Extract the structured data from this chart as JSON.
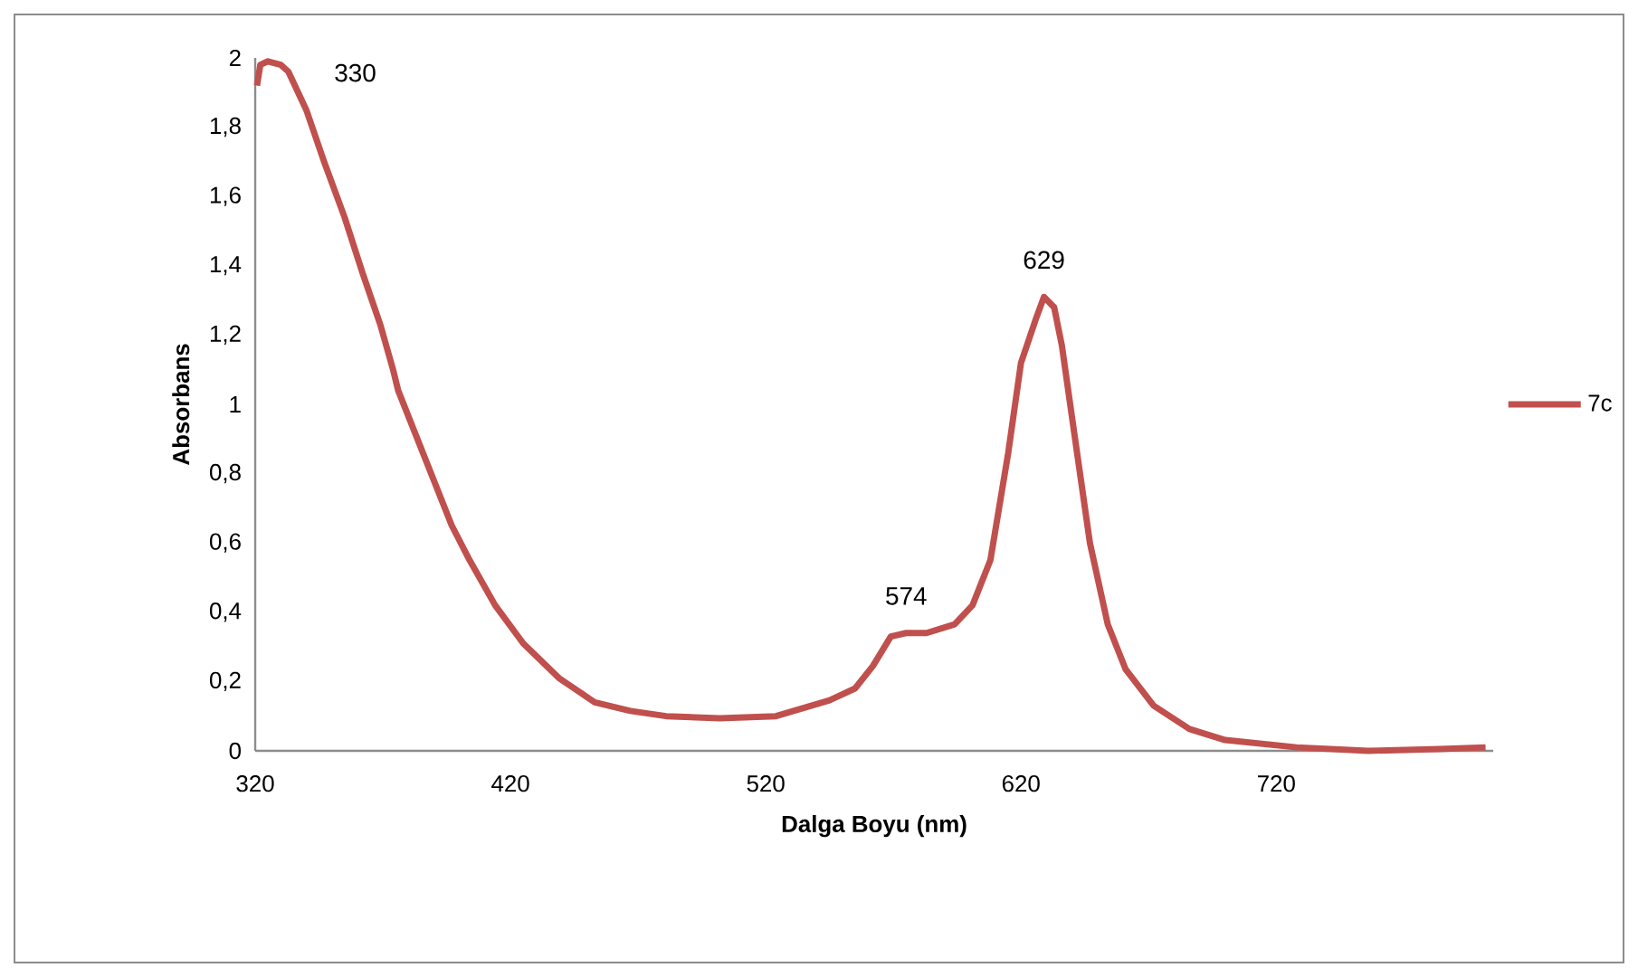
{
  "chart_data": {
    "type": "line",
    "xlabel": "Dalga Boyu (nm)",
    "ylabel": "Absorbans",
    "legend": "right",
    "grid": false,
    "marker": "none",
    "line_style": "solid",
    "xlim": [
      320,
      805
    ],
    "xticks": [
      320,
      420,
      520,
      620,
      720
    ],
    "ylim": [
      0,
      2
    ],
    "yticks": [
      0,
      {
        "value": 0.2,
        "label": "0,2"
      },
      {
        "value": 0.4,
        "label": "0,4"
      },
      {
        "value": 0.6,
        "label": "0,6"
      },
      {
        "value": 0.8,
        "label": "0,8"
      },
      1,
      {
        "value": 1.2,
        "label": "1,2"
      },
      {
        "value": 1.4,
        "label": "1,4"
      },
      {
        "value": 1.6,
        "label": "1,6"
      },
      {
        "value": 1.8,
        "label": "1,8"
      },
      2
    ],
    "annotations": [
      {
        "text": "330",
        "x": 330,
        "y": 1.98
      },
      {
        "text": "574",
        "x": 575,
        "y": 0.34
      },
      {
        "text": "629",
        "x": 629,
        "y": 1.31
      }
    ],
    "series": [
      {
        "name": "7c",
        "color": "#c0504d",
        "x": [
          320.7,
          322,
          325,
          330,
          333,
          340,
          347,
          355,
          362,
          369,
          374,
          376,
          383,
          390,
          397,
          404,
          414,
          425,
          439,
          453,
          467,
          481,
          502,
          524,
          545,
          555,
          562,
          569,
          575,
          583,
          594,
          601,
          608,
          615,
          620,
          626,
          629,
          633,
          636,
          641,
          647,
          654,
          661,
          672,
          686,
          700,
          728,
          756,
          784,
          802
        ],
        "values": [
          1.92,
          1.98,
          1.99,
          1.98,
          1.96,
          1.85,
          1.7,
          1.54,
          1.38,
          1.23,
          1.1,
          1.04,
          0.91,
          0.78,
          0.65,
          0.55,
          0.42,
          0.31,
          0.21,
          0.14,
          0.115,
          0.1,
          0.094,
          0.1,
          0.146,
          0.18,
          0.245,
          0.33,
          0.34,
          0.34,
          0.365,
          0.42,
          0.55,
          0.86,
          1.12,
          1.25,
          1.31,
          1.28,
          1.17,
          0.91,
          0.6,
          0.365,
          0.235,
          0.13,
          0.063,
          0.031,
          0.01,
          0.0,
          0.005,
          0.01
        ]
      }
    ]
  }
}
